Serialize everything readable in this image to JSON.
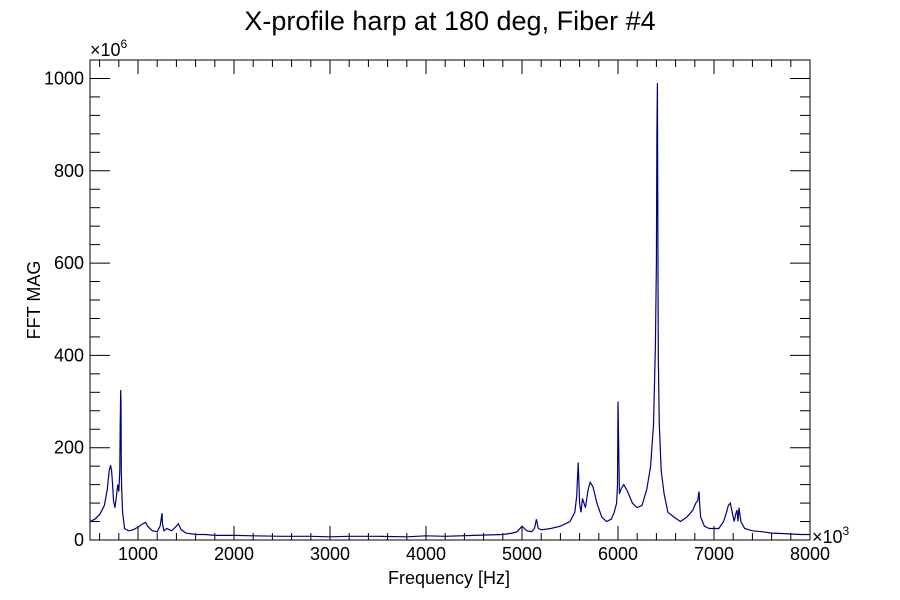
{
  "chart_data": {
    "type": "line",
    "title": "X-profile harp at 180 deg, Fiber #4",
    "xlabel": "Frequency [Hz]",
    "ylabel": "FFT MAG",
    "x_multiplier": "×10",
    "x_multiplier_exp": "3",
    "y_multiplier": "×10",
    "y_multiplier_exp": "6",
    "xlim": [
      500,
      8000
    ],
    "ylim": [
      0,
      1040
    ],
    "x_ticks": [
      1000,
      2000,
      3000,
      4000,
      5000,
      6000,
      7000,
      8000
    ],
    "x_tick_labels": [
      "1000",
      "2000",
      "3000",
      "4000",
      "5000",
      "6000",
      "7000",
      "8000"
    ],
    "y_ticks": [
      0,
      200,
      400,
      600,
      800,
      1000
    ],
    "y_tick_labels": [
      "0",
      "200",
      "400",
      "600",
      "800",
      "1000"
    ],
    "grid": false,
    "line_color": "#000080",
    "series": [
      {
        "x": [
          500,
          550,
          600,
          650,
          680,
          700,
          715,
          725,
          735,
          745,
          760,
          775,
          790,
          800,
          810,
          815,
          820,
          823,
          826,
          830,
          840,
          860,
          900,
          950,
          1000,
          1050,
          1080,
          1100,
          1150,
          1200,
          1230,
          1245,
          1250,
          1255,
          1270,
          1300,
          1350,
          1400,
          1420,
          1450,
          1500,
          1600,
          1700,
          1800,
          2000,
          2200,
          2500,
          2800,
          3000,
          3200,
          3500,
          3800,
          4000,
          4200,
          4500,
          4800,
          4900,
          4950,
          5000,
          5050,
          5100,
          5130,
          5150,
          5170,
          5200,
          5300,
          5400,
          5500,
          5550,
          5570,
          5585,
          5600,
          5615,
          5630,
          5660,
          5690,
          5710,
          5740,
          5780,
          5830,
          5880,
          5930,
          5960,
          5985,
          5995,
          6000,
          6005,
          6015,
          6030,
          6060,
          6100,
          6150,
          6200,
          6250,
          6300,
          6340,
          6370,
          6390,
          6400,
          6405,
          6410,
          6413,
          6416,
          6420,
          6430,
          6450,
          6480,
          6520,
          6580,
          6650,
          6720,
          6780,
          6810,
          6830,
          6840,
          6845,
          6850,
          6860,
          6900,
          6950,
          7000,
          7050,
          7100,
          7130,
          7150,
          7170,
          7190,
          7210,
          7225,
          7240,
          7250,
          7260,
          7280,
          7320,
          7400,
          7500,
          7600,
          7700,
          7800,
          7900,
          8000
        ],
        "y": [
          40,
          45,
          55,
          75,
          110,
          150,
          162,
          150,
          120,
          85,
          70,
          95,
          120,
          105,
          150,
          250,
          325,
          300,
          150,
          110,
          60,
          25,
          20,
          22,
          28,
          35,
          38,
          30,
          20,
          18,
          30,
          50,
          58,
          35,
          20,
          25,
          20,
          30,
          35,
          22,
          15,
          12,
          12,
          10,
          10,
          9,
          8,
          8,
          7,
          8,
          8,
          7,
          9,
          8,
          10,
          12,
          15,
          18,
          30,
          20,
          18,
          25,
          45,
          25,
          22,
          25,
          30,
          40,
          60,
          95,
          168,
          80,
          60,
          90,
          70,
          110,
          125,
          115,
          80,
          50,
          40,
          45,
          60,
          80,
          120,
          300,
          230,
          100,
          110,
          120,
          105,
          80,
          70,
          75,
          110,
          160,
          250,
          420,
          600,
          880,
          990,
          850,
          650,
          400,
          250,
          150,
          100,
          60,
          50,
          40,
          50,
          65,
          80,
          85,
          100,
          105,
          80,
          50,
          30,
          25,
          25,
          25,
          40,
          60,
          75,
          80,
          60,
          40,
          55,
          65,
          40,
          70,
          40,
          25,
          20,
          18,
          15,
          14,
          13,
          12,
          12
        ]
      }
    ]
  }
}
